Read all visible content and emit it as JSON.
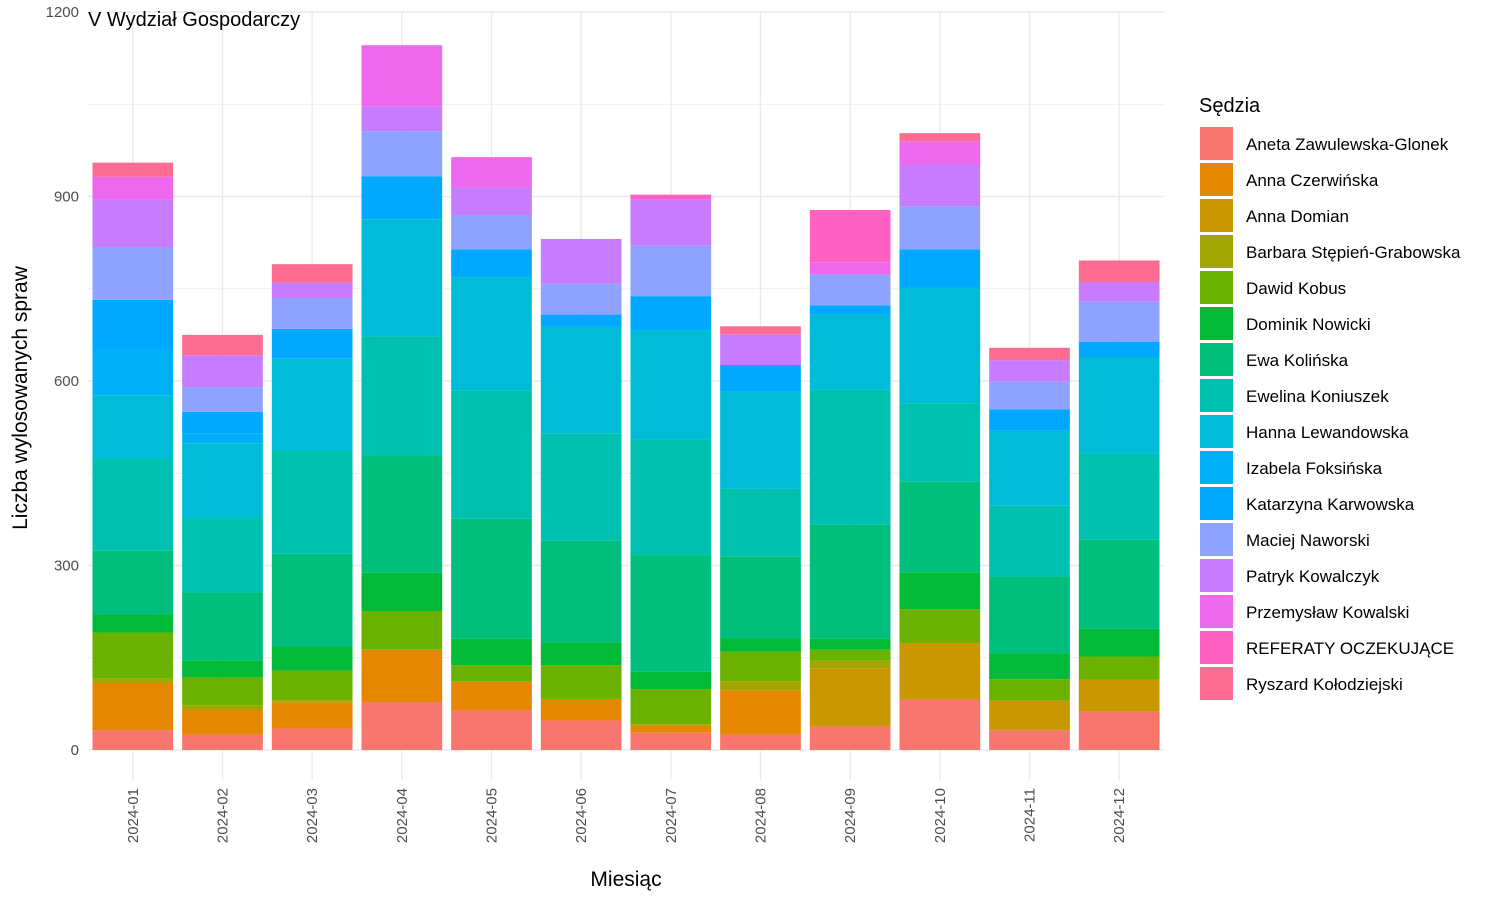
{
  "chart_data": {
    "type": "bar",
    "stacked": true,
    "title": "V Wydział Gospodarczy",
    "xlabel": "Miesiąc",
    "ylabel": "Liczba wylosowanych spraw",
    "ylim": [
      0,
      1200
    ],
    "yticks": [
      0,
      300,
      600,
      900,
      1200
    ],
    "grid": true,
    "legend_title": "Sędzia",
    "legend_position": "right",
    "categories": [
      "2024-01",
      "2024-02",
      "2024-03",
      "2024-04",
      "2024-05",
      "2024-06",
      "2024-07",
      "2024-08",
      "2024-09",
      "2024-10",
      "2024-11",
      "2024-12"
    ],
    "series": [
      {
        "name": "Aneta Zawulewska-Glonek",
        "color": "#F8766D",
        "values": [
          32,
          25,
          35,
          78,
          64,
          48,
          28,
          25,
          38,
          82,
          32,
          62
        ]
      },
      {
        "name": "Anna Czerwińska",
        "color": "#E58700",
        "values": [
          77,
          40,
          42,
          85,
          47,
          35,
          12,
          72,
          0,
          0,
          0,
          0
        ]
      },
      {
        "name": "Anna Domian",
        "color": "#C99800",
        "values": [
          0,
          0,
          0,
          0,
          0,
          0,
          0,
          0,
          95,
          92,
          48,
          52
        ]
      },
      {
        "name": "Barbara Stępień-Grabowska",
        "color": "#A3A500",
        "values": [
          7,
          8,
          4,
          0,
          0,
          0,
          2,
          15,
          12,
          0,
          0,
          0
        ]
      },
      {
        "name": "Dawid Kobus",
        "color": "#6BB100",
        "values": [
          75,
          45,
          48,
          63,
          27,
          55,
          57,
          48,
          18,
          55,
          35,
          38
        ]
      },
      {
        "name": "Dominik Nowicki",
        "color": "#00BA38",
        "values": [
          30,
          28,
          40,
          62,
          43,
          37,
          28,
          22,
          18,
          60,
          42,
          45
        ]
      },
      {
        "name": "Ewa Kolińska",
        "color": "#00BF7D",
        "values": [
          103,
          110,
          150,
          190,
          195,
          165,
          190,
          133,
          185,
          148,
          125,
          145
        ]
      },
      {
        "name": "Ewelina Koniuszek",
        "color": "#00C0AF",
        "values": [
          150,
          122,
          168,
          195,
          208,
          175,
          188,
          110,
          220,
          127,
          115,
          140
        ]
      },
      {
        "name": "Hanna Lewandowska",
        "color": "#00BCD8",
        "values": [
          103,
          120,
          150,
          190,
          185,
          173,
          178,
          158,
          122,
          188,
          122,
          157
        ]
      },
      {
        "name": "Izabela Foksińska",
        "color": "#00B0F6",
        "values": [
          75,
          17,
          0,
          0,
          0,
          0,
          0,
          0,
          0,
          0,
          0,
          0
        ]
      },
      {
        "name": "Katarzyna Karwowska",
        "color": "#00A8FF",
        "values": [
          80,
          35,
          48,
          70,
          45,
          20,
          55,
          43,
          15,
          62,
          35,
          25
        ]
      },
      {
        "name": "Maciej Naworski",
        "color": "#8EA3FF",
        "values": [
          85,
          40,
          50,
          73,
          55,
          50,
          82,
          0,
          50,
          70,
          45,
          65
        ]
      },
      {
        "name": "Patryk Kowalczyk",
        "color": "#C77CFF",
        "values": [
          78,
          52,
          25,
          40,
          45,
          73,
          75,
          50,
          0,
          68,
          35,
          32
        ]
      },
      {
        "name": "Przemysław Kowalski",
        "color": "#ED68ED",
        "values": [
          37,
          0,
          0,
          100,
          50,
          0,
          0,
          0,
          20,
          38,
          0,
          0
        ]
      },
      {
        "name": "REFERATY OCZEKUJĄCE",
        "color": "#FF61C3",
        "values": [
          0,
          0,
          0,
          0,
          0,
          0,
          8,
          0,
          85,
          0,
          0,
          0
        ]
      },
      {
        "name": "Ryszard Kołodziejski",
        "color": "#FF6C91",
        "values": [
          23,
          33,
          30,
          0,
          0,
          0,
          0,
          13,
          0,
          13,
          20,
          35
        ]
      }
    ]
  }
}
